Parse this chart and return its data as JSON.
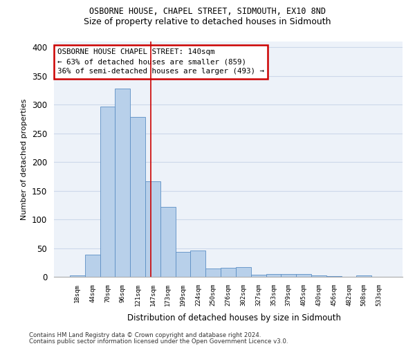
{
  "title1": "OSBORNE HOUSE, CHAPEL STREET, SIDMOUTH, EX10 8ND",
  "title2": "Size of property relative to detached houses in Sidmouth",
  "xlabel": "Distribution of detached houses by size in Sidmouth",
  "ylabel": "Number of detached properties",
  "bar_labels": [
    "18sqm",
    "44sqm",
    "70sqm",
    "96sqm",
    "121sqm",
    "147sqm",
    "173sqm",
    "199sqm",
    "224sqm",
    "250sqm",
    "276sqm",
    "302sqm",
    "327sqm",
    "353sqm",
    "379sqm",
    "405sqm",
    "430sqm",
    "456sqm",
    "482sqm",
    "508sqm",
    "533sqm"
  ],
  "bar_values": [
    3,
    38,
    297,
    328,
    278,
    167,
    122,
    44,
    46,
    15,
    16,
    17,
    4,
    5,
    5,
    5,
    3,
    1,
    0,
    3,
    0
  ],
  "bar_color": "#b8d0ea",
  "bar_edge_color": "#5b8ec4",
  "grid_color": "#ccd8ea",
  "background_color": "#edf2f9",
  "vline_x": 4.88,
  "vline_color": "#cc0000",
  "annotation_text": "OSBORNE HOUSE CHAPEL STREET: 140sqm\n← 63% of detached houses are smaller (859)\n36% of semi-detached houses are larger (493) →",
  "annotation_box_color": "white",
  "annotation_box_edge": "#cc0000",
  "ylim": [
    0,
    410
  ],
  "yticks": [
    0,
    50,
    100,
    150,
    200,
    250,
    300,
    350,
    400
  ],
  "footer1": "Contains HM Land Registry data © Crown copyright and database right 2024.",
  "footer2": "Contains public sector information licensed under the Open Government Licence v3.0."
}
